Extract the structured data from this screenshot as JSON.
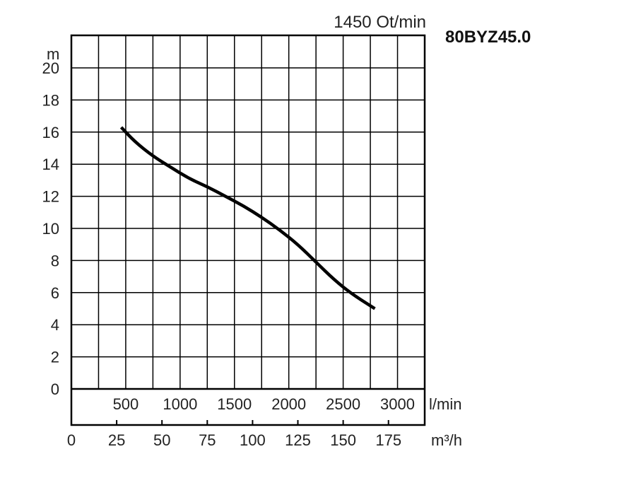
{
  "chart_data": {
    "type": "line",
    "title": "80BYZ45.0",
    "subtitle": "1450 Ot/min",
    "ylabel": "m",
    "ylim": [
      0,
      20
    ],
    "yticks": [
      "0",
      "2",
      "4",
      "6",
      "8",
      "10",
      "12",
      "14",
      "16",
      "18",
      "20"
    ],
    "x_lpm": {
      "unit": "l/min",
      "ticks": [
        "500",
        "1000",
        "1500",
        "2000",
        "2500",
        "3000"
      ]
    },
    "x_m3h": {
      "unit": "m³/h",
      "ticks": [
        "0",
        "25",
        "50",
        "75",
        "100",
        "125",
        "150",
        "175"
      ],
      "xlim": [
        0,
        195
      ]
    },
    "grid": true,
    "series": [
      {
        "x_m3h": [
          27.5,
          35,
          45,
          55,
          65,
          75,
          85,
          95,
          105,
          115,
          125,
          135,
          145,
          155,
          167.5
        ],
        "y": [
          16.3,
          15.4,
          14.5,
          13.8,
          13.1,
          12.6,
          12.0,
          11.4,
          10.7,
          9.9,
          9.0,
          7.9,
          6.8,
          5.9,
          5.0
        ]
      }
    ]
  }
}
